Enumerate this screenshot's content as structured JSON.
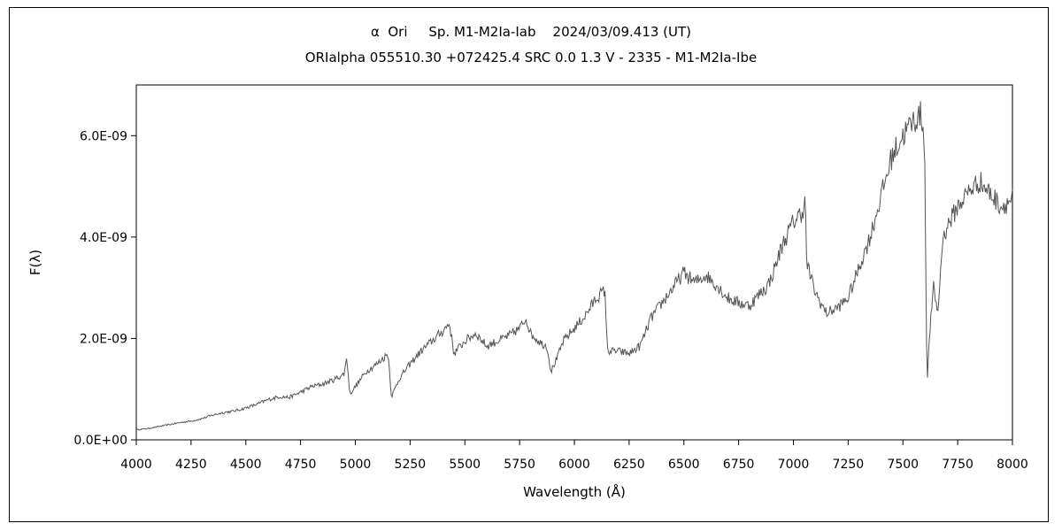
{
  "chart_data": {
    "type": "line",
    "title": "α  Ori     Sp. M1-M2Ia-Iab    2024/03/09.413 (UT)",
    "subtitle": "ORIalpha 055510.30 +072425.4 SRC 0.0 1.3 V - 2335 - M1-M2Ia-Ibe",
    "xlabel": "Wavelength (Å)",
    "ylabel": "F(λ)",
    "xlim": [
      4000,
      8000
    ],
    "ylim": [
      0,
      7e-09
    ],
    "x_ticks": [
      4000,
      4250,
      4500,
      4750,
      5000,
      5250,
      5500,
      5750,
      6000,
      6250,
      6500,
      6750,
      7000,
      7250,
      7500,
      7750,
      8000
    ],
    "x_tick_labels": [
      "4000",
      "4250",
      "4500",
      "4750",
      "5000",
      "5250",
      "5500",
      "5750",
      "6000",
      "6250",
      "6500",
      "6750",
      "7000",
      "7250",
      "7500",
      "7750",
      "8000"
    ],
    "y_ticks": [
      0,
      2e-09,
      4e-09,
      6e-09
    ],
    "y_tick_labels": [
      "0.0E+00",
      "2.0E-09",
      "4.0E-09",
      "6.0E-09"
    ],
    "grid": false,
    "legend": "none",
    "line_color": "#555555",
    "series": [
      {
        "x": [
          4000,
          4050,
          4100,
          4150,
          4200,
          4250,
          4300,
          4350,
          4400,
          4450,
          4500,
          4550,
          4600,
          4650,
          4700,
          4750,
          4800,
          4850,
          4900,
          4950,
          4960,
          4975,
          5000,
          5050,
          5100,
          5150,
          5165,
          5200,
          5250,
          5300,
          5350,
          5400,
          5430,
          5450,
          5500,
          5550,
          5600,
          5650,
          5700,
          5750,
          5780,
          5800,
          5850,
          5875,
          5893,
          5920,
          5950,
          6000,
          6050,
          6100,
          6140,
          6150,
          6160,
          6200,
          6250,
          6300,
          6350,
          6400,
          6450,
          6500,
          6550,
          6600,
          6650,
          6700,
          6750,
          6800,
          6850,
          6875,
          6900,
          6950,
          7000,
          7040,
          7055,
          7060,
          7100,
          7150,
          7200,
          7250,
          7300,
          7350,
          7400,
          7450,
          7500,
          7550,
          7580,
          7590,
          7600,
          7610,
          7620,
          7640,
          7660,
          7680,
          7700,
          7750,
          7800,
          7850,
          7900,
          7950,
          8000
        ],
        "y": [
          2e-10,
          2.2e-10,
          2.6e-10,
          3e-10,
          3.4e-10,
          3.7e-10,
          4.2e-10,
          4.9e-10,
          5.4e-10,
          5.7e-10,
          6.3e-10,
          7e-10,
          7.9e-10,
          8.5e-10,
          8.4e-10,
          9.4e-10,
          1.05e-09,
          1.1e-09,
          1.18e-09,
          1.3e-09,
          1.65e-09,
          9e-10,
          1.05e-09,
          1.35e-09,
          1.5e-09,
          1.7e-09,
          8.5e-10,
          1.2e-09,
          1.5e-09,
          1.75e-09,
          1.95e-09,
          2.15e-09,
          2.3e-09,
          1.7e-09,
          1.95e-09,
          2.1e-09,
          1.85e-09,
          1.95e-09,
          2.05e-09,
          2.2e-09,
          2.4e-09,
          2.1e-09,
          1.9e-09,
          1.85e-09,
          1.35e-09,
          1.6e-09,
          1.95e-09,
          2.2e-09,
          2.45e-09,
          2.8e-09,
          2.95e-09,
          1.8e-09,
          1.75e-09,
          1.75e-09,
          1.7e-09,
          1.85e-09,
          2.4e-09,
          2.7e-09,
          3e-09,
          3.3e-09,
          3.1e-09,
          3.25e-09,
          3.05e-09,
          2.8e-09,
          2.7e-09,
          2.65e-09,
          2.9e-09,
          3e-09,
          3.2e-09,
          3.85e-09,
          4.3e-09,
          4.5e-09,
          4.7e-09,
          3.5e-09,
          2.9e-09,
          2.5e-09,
          2.6e-09,
          2.8e-09,
          3.4e-09,
          4e-09,
          4.8e-09,
          5.6e-09,
          6e-09,
          6.3e-09,
          6.4e-09,
          6.3e-09,
          5.5e-09,
          1e-09,
          2e-09,
          3e-09,
          2.5e-09,
          3.9e-09,
          4.2e-09,
          4.6e-09,
          4.9e-09,
          5.1e-09,
          4.85e-09,
          4.6e-09,
          4.75e-09
        ]
      }
    ]
  }
}
